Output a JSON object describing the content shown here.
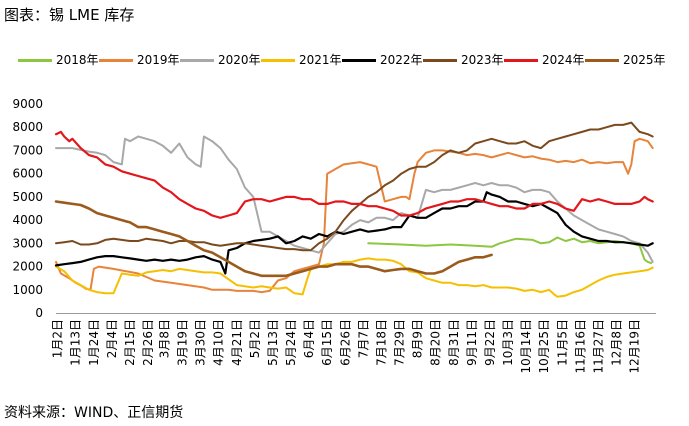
{
  "header": {
    "title": "图表：锡 LME 库存"
  },
  "footer": {
    "source": "资料来源：WIND、正信期货"
  },
  "chart_data": {
    "type": "line",
    "title": "",
    "xlabel": "",
    "ylabel": "",
    "ylim": [
      0,
      9000
    ],
    "yticks": [
      "0",
      "1000",
      "2000",
      "3000",
      "4000",
      "5000",
      "6000",
      "7000",
      "8000",
      "9000"
    ],
    "x_range": [
      0,
      365
    ],
    "xticks": [
      {
        "label": "1月2日",
        "day": 1
      },
      {
        "label": "1月13日",
        "day": 12
      },
      {
        "label": "1月24日",
        "day": 23
      },
      {
        "label": "2月4日",
        "day": 34
      },
      {
        "label": "2月15日",
        "day": 45
      },
      {
        "label": "2月26日",
        "day": 56
      },
      {
        "label": "3月8日",
        "day": 66
      },
      {
        "label": "3月19日",
        "day": 77
      },
      {
        "label": "3月30日",
        "day": 88
      },
      {
        "label": "4月10日",
        "day": 99
      },
      {
        "label": "4月21日",
        "day": 110
      },
      {
        "label": "5月2日",
        "day": 121
      },
      {
        "label": "5月13日",
        "day": 132
      },
      {
        "label": "5月24日",
        "day": 143
      },
      {
        "label": "6月4日",
        "day": 154
      },
      {
        "label": "6月15日",
        "day": 165
      },
      {
        "label": "6月26日",
        "day": 176
      },
      {
        "label": "7月7日",
        "day": 187
      },
      {
        "label": "7月18日",
        "day": 198
      },
      {
        "label": "7月29日",
        "day": 209
      },
      {
        "label": "8月9日",
        "day": 220
      },
      {
        "label": "8月20日",
        "day": 231
      },
      {
        "label": "8月31日",
        "day": 242
      },
      {
        "label": "9月11日",
        "day": 253
      },
      {
        "label": "9月22日",
        "day": 264
      },
      {
        "label": "10月3日",
        "day": 275
      },
      {
        "label": "10月14日",
        "day": 286
      },
      {
        "label": "10月25日",
        "day": 297
      },
      {
        "label": "11月5日",
        "day": 308
      },
      {
        "label": "11月16日",
        "day": 319
      },
      {
        "label": "11月27日",
        "day": 330
      },
      {
        "label": "12月8日",
        "day": 341
      },
      {
        "label": "12月19日",
        "day": 352
      }
    ],
    "grid": false,
    "legend_position": "top",
    "series": [
      {
        "name": "2018年",
        "color": "#8dc63f",
        "width": 2,
        "x": [
          190,
          210,
          225,
          240,
          255,
          265,
          270,
          280,
          290,
          295,
          300,
          305,
          310,
          315,
          320,
          325,
          330,
          335,
          340,
          345,
          350,
          355,
          358,
          360,
          362
        ],
        "y": [
          3000,
          2950,
          2900,
          2950,
          2900,
          2850,
          3000,
          3200,
          3150,
          3000,
          3050,
          3250,
          3100,
          3200,
          3050,
          3100,
          3000,
          3050,
          3100,
          3050,
          3000,
          2900,
          2300,
          2200,
          2150
        ]
      },
      {
        "name": "2019年",
        "color": "#e8833a",
        "width": 2,
        "x": [
          0,
          3,
          8,
          12,
          16,
          18,
          21,
          23,
          26,
          35,
          50,
          60,
          70,
          80,
          90,
          95,
          100,
          105,
          110,
          115,
          120,
          125,
          130,
          135,
          140,
          145,
          150,
          155,
          160,
          163,
          165,
          170,
          175,
          180,
          185,
          190,
          195,
          200,
          205,
          210,
          213,
          215,
          218,
          220,
          225,
          230,
          235,
          240,
          245,
          250,
          255,
          260,
          265,
          270,
          275,
          280,
          285,
          290,
          295,
          300,
          305,
          310,
          315,
          320,
          325,
          330,
          335,
          340,
          345,
          348,
          350,
          352,
          355,
          360,
          363
        ],
        "y": [
          2200,
          1700,
          1500,
          1300,
          1150,
          1050,
          1000,
          1900,
          2000,
          1900,
          1700,
          1400,
          1300,
          1200,
          1100,
          1000,
          1000,
          1000,
          950,
          950,
          950,
          900,
          950,
          1400,
          1500,
          1800,
          1900,
          2000,
          2100,
          3000,
          6000,
          6200,
          6400,
          6450,
          6500,
          6400,
          6300,
          4800,
          4900,
          5000,
          5000,
          4900,
          6000,
          6500,
          6900,
          7000,
          7000,
          6950,
          6900,
          6800,
          6850,
          6800,
          6700,
          6800,
          6900,
          6800,
          6700,
          6750,
          6650,
          6600,
          6500,
          6550,
          6500,
          6600,
          6450,
          6500,
          6450,
          6500,
          6500,
          6000,
          6400,
          7400,
          7500,
          7400,
          7100
        ]
      },
      {
        "name": "2020年",
        "color": "#a8a8a8",
        "width": 2,
        "x": [
          0,
          10,
          20,
          25,
          30,
          35,
          40,
          42,
          45,
          50,
          55,
          60,
          65,
          70,
          75,
          80,
          85,
          88,
          90,
          95,
          100,
          105,
          110,
          115,
          120,
          125,
          130,
          135,
          140,
          145,
          150,
          155,
          160,
          165,
          170,
          175,
          180,
          185,
          190,
          195,
          200,
          205,
          210,
          215,
          220,
          225,
          230,
          235,
          240,
          245,
          250,
          255,
          260,
          265,
          270,
          275,
          280,
          285,
          290,
          295,
          300,
          305,
          310,
          315,
          320,
          325,
          330,
          335,
          340,
          345,
          350,
          355,
          360,
          363
        ],
        "y": [
          7100,
          7100,
          6950,
          6900,
          6800,
          6500,
          6400,
          7500,
          7400,
          7600,
          7500,
          7400,
          7200,
          6900,
          7300,
          6700,
          6400,
          6300,
          7600,
          7400,
          7100,
          6600,
          6200,
          5400,
          5000,
          3500,
          3500,
          3300,
          3100,
          2900,
          2800,
          2700,
          2600,
          3000,
          3400,
          3500,
          3800,
          4000,
          3900,
          4100,
          4100,
          4000,
          4300,
          4200,
          4100,
          5300,
          5200,
          5300,
          5300,
          5400,
          5500,
          5600,
          5500,
          5600,
          5500,
          5500,
          5400,
          5200,
          5300,
          5300,
          5200,
          4800,
          4500,
          4200,
          4000,
          3800,
          3600,
          3500,
          3400,
          3300,
          3100,
          3000,
          2600,
          2200
        ]
      },
      {
        "name": "2021年",
        "color": "#f5c000",
        "width": 2,
        "x": [
          0,
          5,
          10,
          15,
          20,
          25,
          30,
          35,
          40,
          45,
          50,
          55,
          60,
          65,
          70,
          75,
          80,
          85,
          90,
          95,
          100,
          110,
          120,
          125,
          130,
          135,
          140,
          145,
          150,
          153,
          155,
          160,
          165,
          170,
          175,
          180,
          185,
          190,
          195,
          200,
          205,
          210,
          215,
          220,
          225,
          230,
          235,
          240,
          245,
          250,
          255,
          260,
          265,
          270,
          275,
          280,
          285,
          290,
          295,
          300,
          303,
          305,
          310,
          315,
          320,
          325,
          330,
          335,
          340,
          345,
          350,
          355,
          360,
          363
        ],
        "y": [
          2000,
          1800,
          1400,
          1200,
          1000,
          900,
          850,
          850,
          1700,
          1650,
          1600,
          1750,
          1800,
          1850,
          1800,
          1900,
          1850,
          1800,
          1750,
          1750,
          1700,
          1200,
          1100,
          1150,
          1100,
          1050,
          1100,
          850,
          800,
          1500,
          1900,
          2000,
          2100,
          2100,
          2200,
          2200,
          2300,
          2350,
          2300,
          2300,
          2250,
          2100,
          1800,
          1750,
          1500,
          1400,
          1300,
          1300,
          1200,
          1200,
          1150,
          1200,
          1100,
          1100,
          1100,
          1050,
          950,
          1000,
          900,
          1000,
          800,
          700,
          750,
          900,
          1000,
          1200,
          1400,
          1550,
          1650,
          1700,
          1750,
          1800,
          1850,
          1950
        ]
      },
      {
        "name": "2022年",
        "color": "#000000",
        "width": 2.2,
        "x": [
          0,
          5,
          10,
          15,
          20,
          25,
          30,
          35,
          40,
          45,
          50,
          55,
          60,
          65,
          70,
          75,
          80,
          85,
          90,
          95,
          100,
          103,
          105,
          110,
          115,
          120,
          125,
          130,
          135,
          140,
          145,
          150,
          155,
          160,
          165,
          170,
          175,
          180,
          185,
          190,
          195,
          200,
          205,
          210,
          215,
          220,
          225,
          230,
          235,
          240,
          245,
          250,
          255,
          260,
          262,
          265,
          270,
          275,
          280,
          285,
          290,
          295,
          300,
          305,
          310,
          315,
          320,
          325,
          330,
          335,
          340,
          345,
          350,
          355,
          360,
          363
        ],
        "y": [
          2050,
          2100,
          2150,
          2200,
          2300,
          2400,
          2450,
          2450,
          2400,
          2350,
          2300,
          2250,
          2300,
          2250,
          2300,
          2250,
          2300,
          2400,
          2450,
          2300,
          2200,
          1700,
          2700,
          2800,
          3000,
          3100,
          3150,
          3200,
          3300,
          3000,
          3100,
          3300,
          3200,
          3400,
          3300,
          3500,
          3400,
          3500,
          3600,
          3500,
          3550,
          3600,
          3700,
          3700,
          4200,
          4100,
          4100,
          4300,
          4500,
          4500,
          4600,
          4600,
          4800,
          4800,
          5200,
          5100,
          5000,
          4800,
          4800,
          4700,
          4600,
          4700,
          4500,
          4300,
          3800,
          3500,
          3300,
          3200,
          3100,
          3100,
          3050,
          3050,
          3000,
          2950,
          2900,
          3000
        ]
      },
      {
        "name": "2023年",
        "color": "#7a4a1e",
        "width": 2,
        "x": [
          0,
          5,
          10,
          15,
          20,
          25,
          30,
          35,
          40,
          45,
          50,
          55,
          60,
          65,
          70,
          75,
          80,
          85,
          90,
          95,
          100,
          105,
          110,
          115,
          120,
          125,
          130,
          135,
          140,
          145,
          150,
          155,
          160,
          165,
          170,
          175,
          180,
          185,
          190,
          195,
          200,
          205,
          210,
          215,
          220,
          225,
          230,
          235,
          240,
          245,
          250,
          255,
          260,
          265,
          270,
          275,
          280,
          285,
          290,
          295,
          300,
          305,
          310,
          315,
          320,
          325,
          330,
          335,
          340,
          345,
          350,
          355,
          360,
          363
        ],
        "y": [
          3000,
          3050,
          3100,
          2950,
          2950,
          3000,
          3150,
          3200,
          3150,
          3100,
          3100,
          3200,
          3150,
          3100,
          3000,
          3100,
          3100,
          3050,
          3050,
          2950,
          2900,
          2950,
          3000,
          3000,
          2950,
          2900,
          2850,
          2800,
          2750,
          2750,
          2700,
          2700,
          3000,
          3200,
          3500,
          4000,
          4400,
          4700,
          5000,
          5200,
          5500,
          5700,
          6000,
          6200,
          6300,
          6300,
          6500,
          6800,
          7000,
          6900,
          7000,
          7300,
          7400,
          7500,
          7400,
          7300,
          7300,
          7400,
          7200,
          7100,
          7400,
          7500,
          7600,
          7700,
          7800,
          7900,
          7900,
          8000,
          8100,
          8100,
          8200,
          7800,
          7700,
          7600
        ]
      },
      {
        "name": "2024年",
        "color": "#e3161b",
        "width": 2.2,
        "x": [
          0,
          3,
          5,
          8,
          10,
          15,
          20,
          25,
          30,
          35,
          40,
          45,
          50,
          55,
          60,
          65,
          70,
          75,
          80,
          85,
          90,
          95,
          100,
          105,
          110,
          115,
          120,
          125,
          130,
          135,
          140,
          145,
          150,
          155,
          160,
          165,
          170,
          175,
          180,
          185,
          190,
          195,
          200,
          205,
          210,
          215,
          220,
          225,
          230,
          235,
          240,
          245,
          250,
          255,
          260,
          265,
          270,
          275,
          280,
          285,
          290,
          295,
          300,
          305,
          310,
          315,
          320,
          325,
          330,
          335,
          340,
          345,
          350,
          355,
          358,
          360,
          363
        ],
        "y": [
          7700,
          7800,
          7600,
          7400,
          7500,
          7100,
          6800,
          6700,
          6400,
          6300,
          6100,
          6000,
          5900,
          5800,
          5700,
          5400,
          5200,
          4900,
          4700,
          4500,
          4400,
          4200,
          4100,
          4200,
          4300,
          4800,
          4900,
          4900,
          4800,
          4900,
          5000,
          5000,
          4900,
          4900,
          4700,
          4700,
          4800,
          4800,
          4700,
          4700,
          4600,
          4600,
          4500,
          4400,
          4200,
          4200,
          4300,
          4500,
          4600,
          4700,
          4800,
          4800,
          4900,
          4900,
          4800,
          4700,
          4600,
          4600,
          4500,
          4500,
          4700,
          4700,
          4800,
          4700,
          4500,
          4400,
          4900,
          4800,
          4900,
          4800,
          4700,
          4700,
          4700,
          4800,
          5000,
          4900,
          4800
        ]
      },
      {
        "name": "2025年",
        "color": "#9a5b1c",
        "width": 2.6,
        "x": [
          0,
          5,
          10,
          15,
          20,
          25,
          30,
          35,
          40,
          45,
          50,
          55,
          60,
          65,
          70,
          75,
          80,
          85,
          90,
          95,
          100,
          105,
          110,
          115,
          120,
          125,
          130,
          135,
          140,
          145,
          150,
          155,
          160,
          165,
          170,
          175,
          180,
          185,
          190,
          195,
          200,
          205,
          210,
          215,
          220,
          225,
          230,
          235,
          240,
          245,
          250,
          255,
          260,
          265
        ],
        "y": [
          4800,
          4750,
          4700,
          4650,
          4500,
          4300,
          4200,
          4100,
          4000,
          3900,
          3700,
          3700,
          3600,
          3500,
          3400,
          3300,
          3100,
          2900,
          2700,
          2600,
          2400,
          2200,
          2000,
          1800,
          1700,
          1600,
          1600,
          1600,
          1600,
          1700,
          1800,
          1900,
          2000,
          2000,
          2100,
          2100,
          2100,
          2000,
          2000,
          1900,
          1800,
          1850,
          1900,
          1900,
          1800,
          1700,
          1700,
          1800,
          2000,
          2200,
          2300,
          2400,
          2400,
          2500
        ]
      }
    ]
  }
}
